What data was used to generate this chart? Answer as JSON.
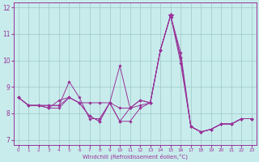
{
  "xlabel": "Windchill (Refroidissement éolien,°C)",
  "xlim": [
    -0.5,
    23.5
  ],
  "ylim": [
    6.8,
    12.2
  ],
  "yticks": [
    7,
    8,
    9,
    10,
    11,
    12
  ],
  "xticks": [
    0,
    1,
    2,
    3,
    4,
    5,
    6,
    7,
    8,
    9,
    10,
    11,
    12,
    13,
    14,
    15,
    16,
    17,
    18,
    19,
    20,
    21,
    22,
    23
  ],
  "background_color": "#c8ecec",
  "grid_color": "#9ec8c8",
  "line_color": "#993399",
  "star_x": 15,
  "star_y": 11.7,
  "lines": [
    [
      8.6,
      8.3,
      8.3,
      8.3,
      8.3,
      9.2,
      8.6,
      7.8,
      7.8,
      8.4,
      9.8,
      8.2,
      8.3,
      8.4,
      10.4,
      11.7,
      9.9,
      7.5,
      7.3,
      7.4,
      7.6,
      7.6,
      7.8,
      7.8
    ],
    [
      8.6,
      8.3,
      8.3,
      8.3,
      8.3,
      8.6,
      8.4,
      7.9,
      7.7,
      8.4,
      8.2,
      8.2,
      8.5,
      8.4,
      10.4,
      11.7,
      10.1,
      7.5,
      7.3,
      7.4,
      7.6,
      7.6,
      7.8,
      7.8
    ],
    [
      8.6,
      8.3,
      8.3,
      8.2,
      8.5,
      8.6,
      8.4,
      8.4,
      8.4,
      8.4,
      7.7,
      8.2,
      8.5,
      8.4,
      10.4,
      11.7,
      10.3,
      7.5,
      7.3,
      7.4,
      7.6,
      7.6,
      7.8,
      7.8
    ],
    [
      8.6,
      8.3,
      8.3,
      8.2,
      8.2,
      8.6,
      8.4,
      7.9,
      7.7,
      8.4,
      7.7,
      7.7,
      8.2,
      8.4,
      10.4,
      11.7,
      10.1,
      7.5,
      7.3,
      7.4,
      7.6,
      7.6,
      7.8,
      7.8
    ]
  ]
}
